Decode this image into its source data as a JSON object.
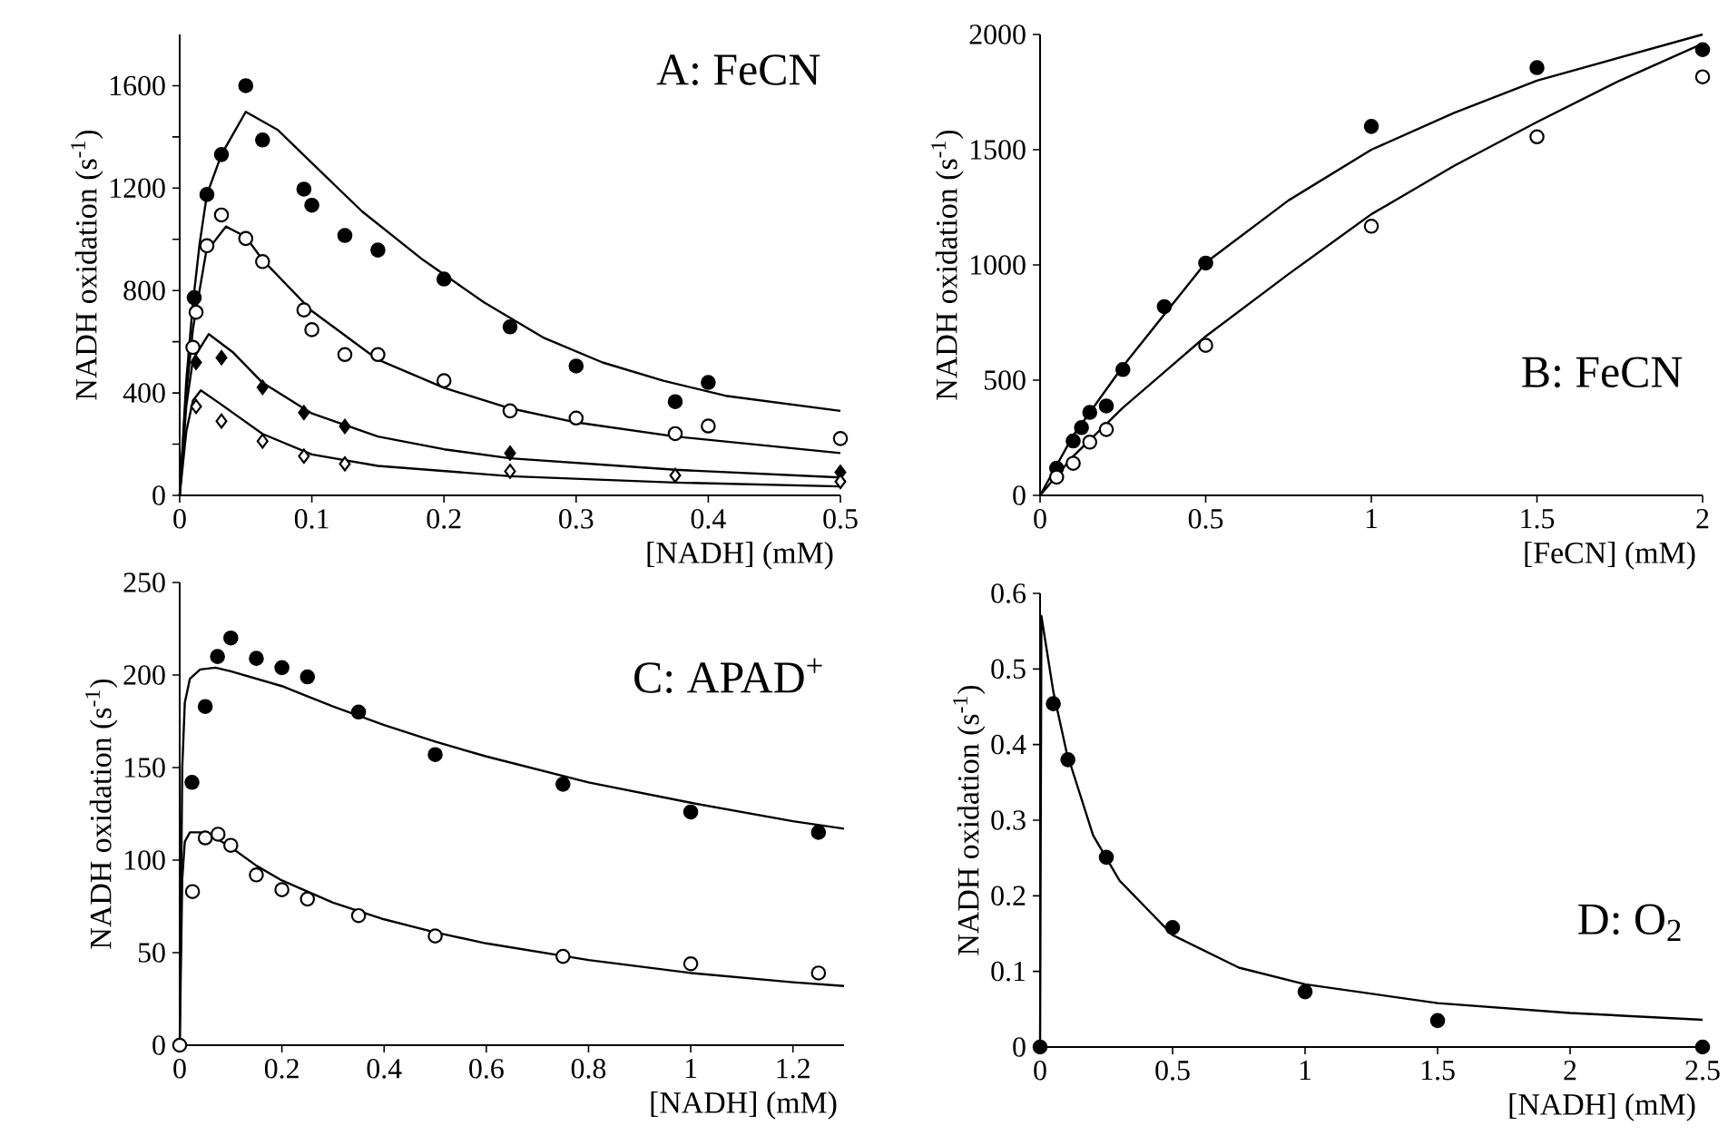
{
  "chart_data": [
    {
      "type": "scatter",
      "annotations": [
        "A: FeCN"
      ],
      "xlabel": "[NADH] (mM)",
      "ylabel": "NADH oxidation (s$^{-1}$)",
      "xlim": [
        0,
        0.5
      ],
      "xticks": [
        0,
        0.1,
        0.2,
        0.3,
        0.4,
        0.5
      ],
      "ylim": [
        0,
        1800
      ],
      "yticks": [
        0,
        {
          "value": 200,
          "label": null
        },
        400,
        {
          "value": 600,
          "label": null
        },
        800,
        {
          "value": 1000,
          "label": null
        },
        1200,
        {
          "value": 1400,
          "label": null
        },
        1600
      ],
      "series": [
        {
          "color": "#000000",
          "marker": "circle",
          "x": [
            0.011,
            0.0206,
            0.0316,
            0.05,
            0.0627,
            0.094,
            0.1,
            0.125,
            0.15,
            0.2,
            0.25,
            0.3,
            0.375,
            0.4
          ],
          "values": [
            772,
            1175,
            1331,
            1600,
            1388,
            1196,
            1133,
            1015,
            958,
            845,
            658,
            505,
            366,
            441
          ]
        },
        {
          "color": "#ffffff",
          "marker": "circle",
          "x": [
            0.01,
            0.0124,
            0.0206,
            0.0316,
            0.05,
            0.0627,
            0.094,
            0.1,
            0.125,
            0.15,
            0.2,
            0.25,
            0.3,
            0.375,
            0.4,
            0.5
          ],
          "values": [
            578,
            715,
            975,
            1095,
            1003,
            913,
            724,
            647,
            550,
            550,
            448,
            330,
            302,
            241,
            271,
            222
          ]
        },
        {
          "color": "#000000",
          "marker": "diamond",
          "x": [
            0.0124,
            0.0316,
            0.0627,
            0.094,
            0.125,
            0.25,
            0.5
          ],
          "values": [
            519,
            538,
            422,
            323,
            269,
            165,
            90
          ]
        },
        {
          "color": "#ffffff",
          "marker": "diamond",
          "x": [
            0.0124,
            0.0316,
            0.0627,
            0.094,
            0.125,
            0.25,
            0.375,
            0.5
          ],
          "values": [
            347,
            290,
            212,
            153,
            123,
            94,
            78,
            54
          ]
        },
        {
          "type": "line",
          "color": "#000000",
          "marker": "none",
          "x": [
            0,
            0.005,
            0.01,
            0.015,
            0.0206,
            0.0316,
            0.05,
            0.074,
            0.1,
            0.138,
            0.184,
            0.23,
            0.276,
            0.32,
            0.366,
            0.413,
            0.5
          ],
          "values": [
            0,
            450,
            750,
            980,
            1175,
            1331,
            1498,
            1428,
            1298,
            1109,
            920,
            755,
            614,
            519,
            448,
            389,
            330
          ]
        },
        {
          "type": "line",
          "color": "#000000",
          "marker": "none",
          "x": [
            0,
            0.005,
            0.01,
            0.02,
            0.035,
            0.05,
            0.0627,
            0.1,
            0.15,
            0.2,
            0.25,
            0.3,
            0.375,
            0.5
          ],
          "values": [
            0,
            400,
            650,
            950,
            1050,
            1010,
            920,
            720,
            530,
            420,
            340,
            285,
            230,
            165
          ]
        },
        {
          "type": "line",
          "color": "#000000",
          "marker": "none",
          "x": [
            0,
            0.005,
            0.01,
            0.022,
            0.04,
            0.0627,
            0.1,
            0.15,
            0.2,
            0.25,
            0.375,
            0.5
          ],
          "values": [
            0,
            350,
            530,
            630,
            560,
            440,
            320,
            230,
            180,
            145,
            100,
            70
          ]
        },
        {
          "type": "line",
          "color": "#000000",
          "marker": "none",
          "x": [
            0,
            0.005,
            0.01,
            0.016,
            0.03,
            0.0627,
            0.1,
            0.15,
            0.25,
            0.375,
            0.5
          ],
          "values": [
            0,
            250,
            370,
            410,
            360,
            240,
            160,
            115,
            75,
            50,
            35
          ]
        }
      ]
    },
    {
      "type": "scatter",
      "annotations": [
        "B: FeCN"
      ],
      "xlabel": "[FeCN] (mM)",
      "ylabel": "NADH oxidation (s$^{-1}$)",
      "xlim": [
        0,
        2
      ],
      "xticks": [
        0,
        0.5,
        1,
        1.5,
        2
      ],
      "ylim": [
        0,
        2000
      ],
      "yticks": [
        0,
        500,
        1000,
        1500,
        2000
      ],
      "series": [
        {
          "color": "#000000",
          "marker": "circle",
          "x": [
            0.05,
            0.1,
            0.125,
            0.15,
            0.2,
            0.25,
            0.375,
            0.5,
            1,
            1.5,
            2
          ],
          "values": [
            118,
            236,
            294,
            360,
            388,
            546,
            819,
            1008,
            1601,
            1856,
            1934
          ]
        },
        {
          "color": "#ffffff",
          "marker": "circle",
          "x": [
            0.05,
            0.1,
            0.15,
            0.2,
            0.5,
            1,
            1.5,
            2
          ],
          "values": [
            79,
            139,
            231,
            286,
            651,
            1168,
            1556,
            1816
          ]
        },
        {
          "type": "line",
          "color": "#000000",
          "marker": "none",
          "x": [
            0,
            0.1,
            0.25,
            0.5,
            0.75,
            1,
            1.25,
            1.5,
            1.75,
            2
          ],
          "values": [
            0,
            260,
            560,
            1010,
            1280,
            1500,
            1660,
            1800,
            1900,
            2000
          ]
        },
        {
          "type": "line",
          "color": "#000000",
          "marker": "none",
          "x": [
            0,
            0.1,
            0.25,
            0.5,
            0.75,
            1,
            1.25,
            1.5,
            1.75,
            2
          ],
          "values": [
            0,
            170,
            380,
            690,
            960,
            1220,
            1430,
            1620,
            1800,
            1960
          ]
        }
      ]
    },
    {
      "type": "scatter",
      "annotations": [
        "C: APAD$^{+}$"
      ],
      "xlabel": "[NADH] (mM)",
      "ylabel": "NADH oxidation (s$^{-1}$)",
      "xlim": [
        0,
        1.3
      ],
      "xticks": [
        0,
        0.2,
        0.4,
        0.6,
        0.8,
        1,
        1.2
      ],
      "ylim": [
        0,
        250
      ],
      "yticks": [
        0,
        50,
        100,
        150,
        200,
        250
      ],
      "series": [
        {
          "color": "#000000",
          "marker": "circle",
          "x": [
            0.024,
            0.05,
            0.074,
            0.1,
            0.15,
            0.2,
            0.25,
            0.35,
            0.5,
            0.75,
            1,
            1.25
          ],
          "values": [
            142,
            183,
            210,
            220,
            209,
            204,
            199,
            180,
            157,
            141,
            126,
            115
          ]
        },
        {
          "color": "#ffffff",
          "marker": "circle",
          "x": [
            0,
            0.025,
            0.05,
            0.075,
            0.1,
            0.15,
            0.2,
            0.25,
            0.35,
            0.5,
            0.75,
            1,
            1.25
          ],
          "values": [
            0,
            83,
            112,
            114,
            108,
            92,
            84,
            79,
            70,
            59,
            48,
            44,
            39
          ]
        },
        {
          "type": "line",
          "color": "#000000",
          "marker": "none",
          "x": [
            0,
            0.005,
            0.01,
            0.02,
            0.04,
            0.07,
            0.1,
            0.2,
            0.3,
            0.4,
            0.5,
            0.6,
            0.8,
            1,
            1.2,
            1.3
          ],
          "values": [
            0,
            150,
            185,
            198,
            203,
            204,
            202,
            194,
            183,
            173,
            164,
            156,
            142,
            131,
            121,
            117
          ]
        },
        {
          "type": "line",
          "color": "#000000",
          "marker": "none",
          "x": [
            0,
            0.005,
            0.01,
            0.02,
            0.04,
            0.07,
            0.1,
            0.15,
            0.2,
            0.3,
            0.4,
            0.5,
            0.6,
            0.8,
            1,
            1.2,
            1.3
          ],
          "values": [
            0,
            90,
            110,
            115,
            115,
            112,
            107,
            97,
            89,
            77,
            68,
            61,
            55,
            46,
            39,
            34,
            32
          ]
        }
      ]
    },
    {
      "type": "scatter",
      "annotations": [
        "D: O$_{2}$"
      ],
      "xlabel": "[NADH] (mM)",
      "ylabel": "NADH oxidation (s$^{-1}$)",
      "xlim": [
        0,
        2.5
      ],
      "xticks": [
        0,
        0.5,
        1,
        1.5,
        2,
        2.5
      ],
      "ylim": [
        0,
        0.6
      ],
      "yticks": [
        0,
        0.1,
        0.2,
        0.3,
        0.4,
        0.5,
        0.6
      ],
      "series": [
        {
          "color": "#000000",
          "marker": "circle",
          "x": [
            0,
            0.05,
            0.105,
            0.25,
            0.5,
            1,
            1.5,
            2.5
          ],
          "values": [
            0,
            0.454,
            0.38,
            0.251,
            0.158,
            0.073,
            0.035,
            0
          ]
        },
        {
          "type": "line",
          "color": "#000000",
          "marker": "none",
          "x": [
            0,
            0.005,
            0.05,
            0.1,
            0.2,
            0.3,
            0.5,
            0.75,
            1,
            1.5,
            2,
            2.5
          ],
          "values": [
            0,
            0.57,
            0.47,
            0.39,
            0.28,
            0.22,
            0.148,
            0.105,
            0.083,
            0.058,
            0.045,
            0.036
          ]
        }
      ]
    }
  ]
}
